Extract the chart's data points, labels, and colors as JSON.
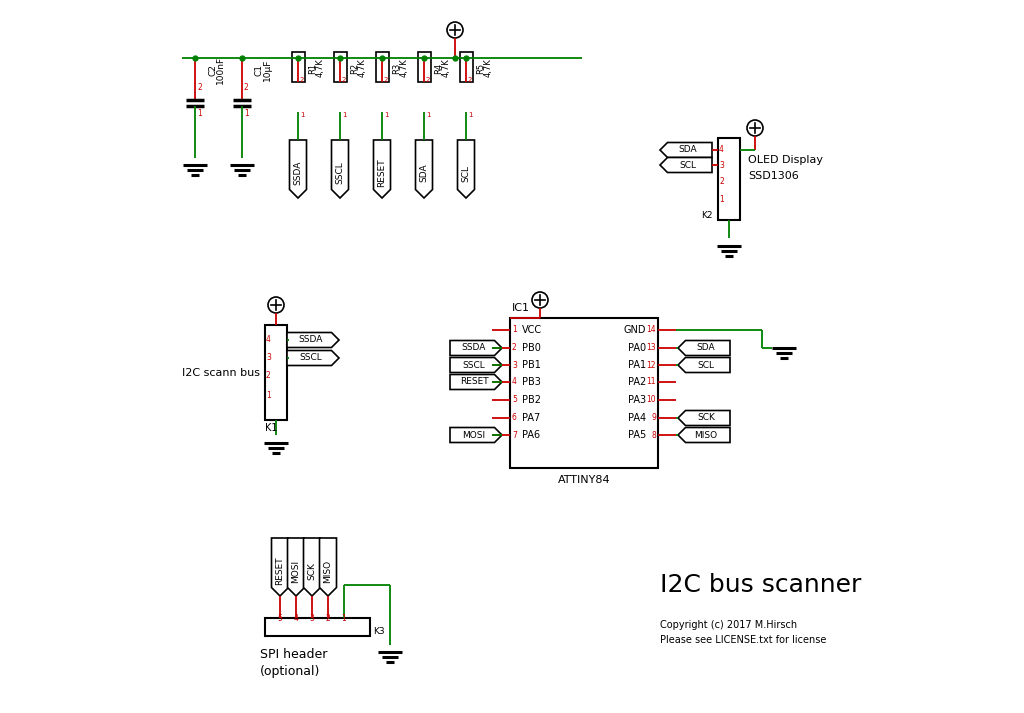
{
  "title": "I2C bus scanner",
  "subtitle1": "Copyright (c) 2017 M.Hirsch",
  "subtitle2": "Please see LICENSE.txt for license",
  "bg_color": "#ffffff",
  "GREEN": "#008000",
  "RED": "#cc0000",
  "BLACK": "#000000",
  "TRED": "#cc0000"
}
